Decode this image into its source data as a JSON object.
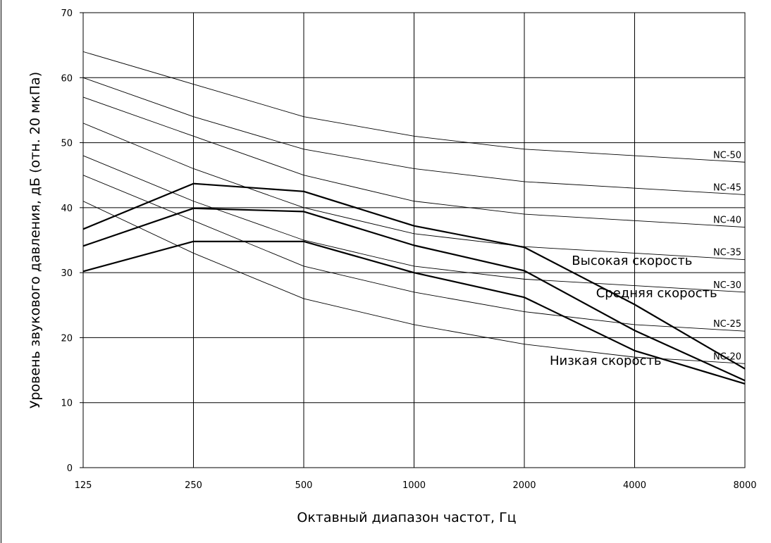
{
  "chart_data": {
    "type": "line",
    "xlabel": "Октавный диапазон частот, Гц",
    "ylabel": "Уровень звукового давления, дБ (отн. 20 мкПа)",
    "categories": [
      "125",
      "250",
      "500",
      "1000",
      "2000",
      "4000",
      "8000"
    ],
    "ylim": [
      0,
      70
    ],
    "yticks": [
      "0",
      "10",
      "20",
      "30",
      "40",
      "50",
      "60",
      "70"
    ],
    "grid": true,
    "nc_curves": [
      {
        "name": "NC-50",
        "values": [
          64,
          59,
          54,
          51,
          49,
          48,
          47
        ]
      },
      {
        "name": "NC-45",
        "values": [
          60,
          54,
          49,
          46,
          44,
          43,
          42
        ]
      },
      {
        "name": "NC-40",
        "values": [
          57,
          51,
          45,
          41,
          39,
          38,
          37
        ]
      },
      {
        "name": "NC-35",
        "values": [
          53,
          46,
          40,
          36,
          34,
          33,
          32
        ]
      },
      {
        "name": "NC-30",
        "values": [
          48,
          41,
          35,
          31,
          29,
          28,
          27
        ]
      },
      {
        "name": "NC-25",
        "values": [
          45,
          38,
          31,
          27,
          24,
          22,
          21
        ]
      },
      {
        "name": "NC-20",
        "values": [
          41,
          33,
          26,
          22,
          19,
          17,
          16
        ]
      }
    ],
    "series": [
      {
        "name": "Высокая скорость",
        "values": [
          36.7,
          43.7,
          42.5,
          37.2,
          33.9,
          25.1,
          15.2
        ]
      },
      {
        "name": "Средняя скорость",
        "values": [
          34.1,
          39.9,
          39.4,
          34.2,
          30.3,
          21.1,
          13.4
        ]
      },
      {
        "name": "Низкая скорость",
        "values": [
          30.2,
          34.8,
          34.8,
          30.0,
          26.2,
          18.0,
          12.9
        ]
      }
    ]
  }
}
